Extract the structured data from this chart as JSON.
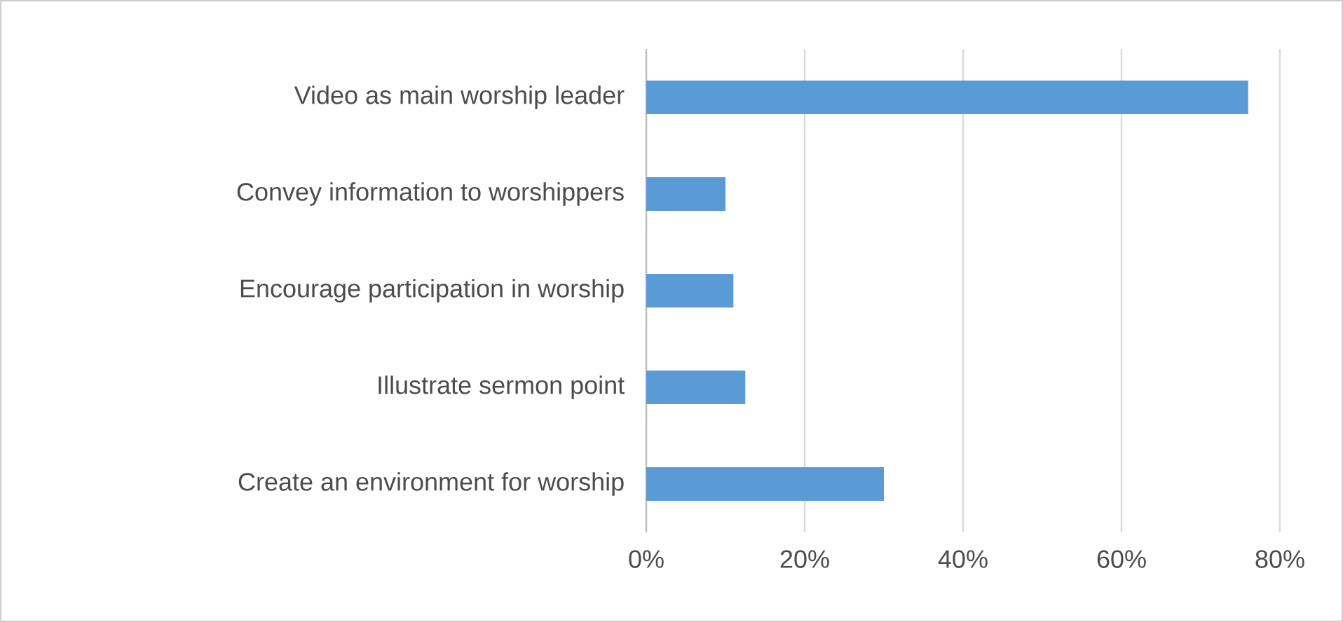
{
  "chart_data": {
    "type": "bar",
    "orientation": "horizontal",
    "categories": [
      "Video as main worship leader",
      "Convey information to worshippers",
      "Encourage participation in worship",
      "Illustrate sermon point",
      "Create an environment for worship"
    ],
    "values": [
      76,
      10,
      11,
      12.5,
      30
    ],
    "color": "#5b9bd5",
    "xlim": [
      0,
      80
    ],
    "xticks": [
      {
        "value": 0,
        "label": "0%"
      },
      {
        "value": 20,
        "label": "20%"
      },
      {
        "value": 40,
        "label": "40%"
      },
      {
        "value": 60,
        "label": "60%"
      },
      {
        "value": 80,
        "label": "80%"
      }
    ],
    "grid": "x"
  }
}
